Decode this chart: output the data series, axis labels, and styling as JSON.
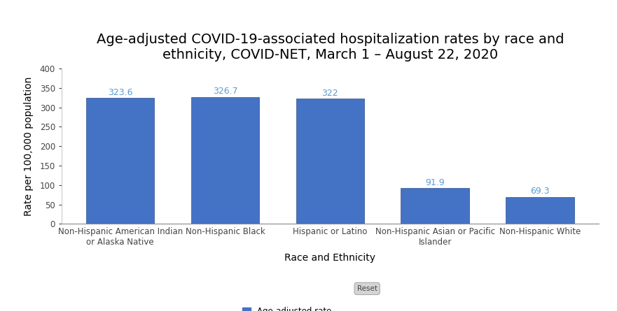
{
  "title": "Age-adjusted COVID-19-associated hospitalization rates by race and\nethnicity, COVID-NET, March 1 – August 22, 2020",
  "categories": [
    "Non-Hispanic American Indian\nor Alaska Native",
    "Non-Hispanic Black",
    "Hispanic or Latino",
    "Non-Hispanic Asian or Pacific\nIslander",
    "Non-Hispanic White"
  ],
  "values": [
    323.6,
    326.7,
    322,
    91.9,
    69.3
  ],
  "bar_color": "#4472c4",
  "label_color": "#5b9bd5",
  "xlabel": "Race and Ethnicity",
  "ylabel": "Rate per 100,000 population",
  "ylim": [
    0,
    400
  ],
  "yticks": [
    0,
    50,
    100,
    150,
    200,
    250,
    300,
    350,
    400
  ],
  "legend_label": "Age-adjusted rate",
  "reset_label": "Reset",
  "background_color": "#ffffff",
  "title_fontsize": 14,
  "axis_fontsize": 10,
  "label_fontsize": 9,
  "tick_fontsize": 8.5
}
